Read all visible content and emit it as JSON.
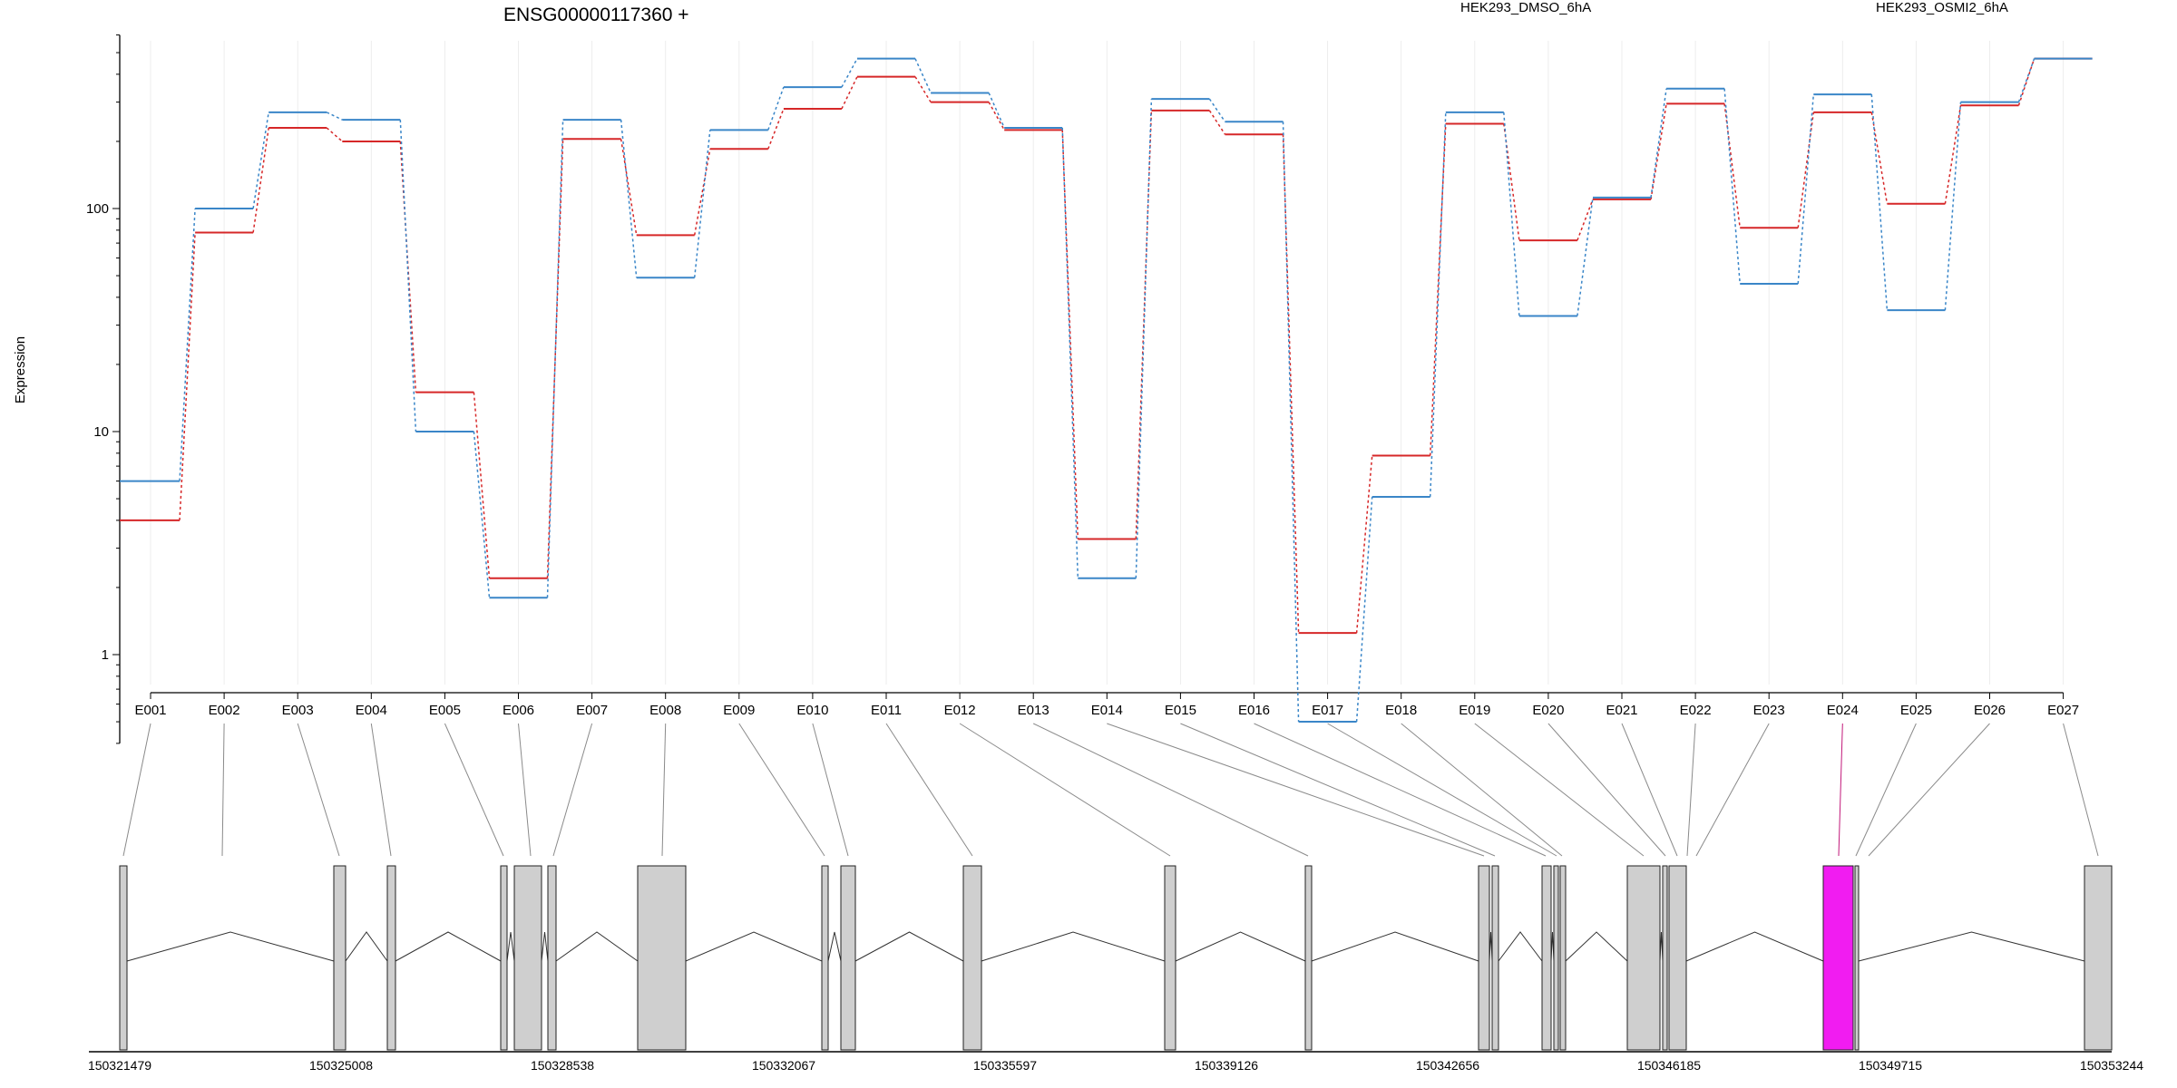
{
  "chart_data": {
    "type": "line",
    "title": "ENSG00000117360 +",
    "ylabel": "Expression",
    "xlabel": "",
    "y_scale": "log",
    "ylim": [
      0.4,
      600
    ],
    "y_ticks": [
      1,
      10,
      100
    ],
    "grid": "vertical lines at exon positions",
    "legend_placement": "top-right",
    "categories": [
      "E001",
      "E002",
      "E003",
      "E004",
      "E005",
      "E006",
      "E007",
      "E008",
      "E009",
      "E010",
      "E011",
      "E012",
      "E013",
      "E014",
      "E015",
      "E016",
      "E017",
      "E018",
      "E019",
      "E020",
      "E021",
      "E022",
      "E023",
      "E024",
      "E025",
      "E026",
      "E027"
    ],
    "series": [
      {
        "name": "HEK293_DMSO_6hA",
        "color": "#d62728",
        "values": [
          4,
          78,
          230,
          200,
          15,
          2.2,
          205,
          76,
          185,
          280,
          390,
          300,
          225,
          3.3,
          275,
          215,
          1.25,
          7.8,
          240,
          72,
          110,
          295,
          82,
          270,
          105,
          290,
          470
        ]
      },
      {
        "name": "HEK293_OSMI2_6hA",
        "color": "#3a86c8",
        "values": [
          6,
          100,
          270,
          250,
          10,
          1.8,
          250,
          49,
          225,
          350,
          470,
          330,
          230,
          2.2,
          310,
          245,
          0.5,
          5.1,
          270,
          33,
          112,
          345,
          46,
          325,
          35,
          300,
          470
        ]
      }
    ],
    "gene_model": {
      "coordinate_labels": [
        "150321479",
        "150325008",
        "150328538",
        "150332067",
        "150335597",
        "150339126",
        "150342656",
        "150346185",
        "150349715",
        "150353244"
      ],
      "highlight_exon": "E024",
      "highlight_color": "#f11cf1"
    }
  }
}
